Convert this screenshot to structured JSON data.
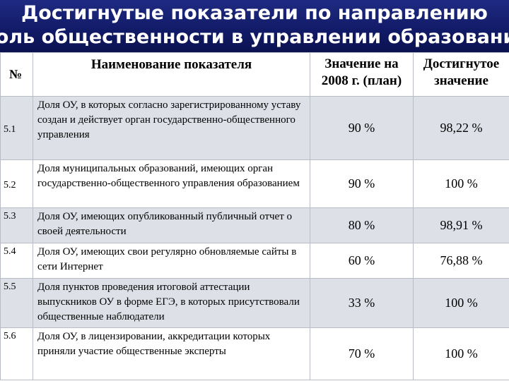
{
  "title": {
    "line1": "Достигнутые показатели по направлению",
    "line2": "Роль общественности в управлении образованием"
  },
  "table": {
    "headers": {
      "num": "№",
      "name": "Наименование показателя",
      "plan_line1": "Значение на",
      "plan_line2": "2008 г. (план)",
      "achieved_line1": "Достигнутое",
      "achieved_line2": "значение"
    },
    "rows": [
      {
        "num": "5.1",
        "name": "Доля ОУ, в которых согласно зарегистрированному уставу создан и действует орган государственно-общественного управления",
        "plan": "90 %",
        "achieved": "98,22 %"
      },
      {
        "num": "5.2",
        "name": "Доля муниципальных образований, имеющих орган государственно-общественного управления образованием",
        "plan": "90 %",
        "achieved": "100 %"
      },
      {
        "num": "5.3",
        "name": "Доля ОУ, имеющих опубликованный публичный отчет о своей деятельности",
        "plan": "80 %",
        "achieved": "98,91 %"
      },
      {
        "num": "5.4",
        "name": "Доля ОУ, имеющих свои регулярно обновляемые сайты в сети Интернет",
        "plan": "60 %",
        "achieved": "76,88 %"
      },
      {
        "num": "5.5",
        "name": "Доля пунктов проведения итоговой аттестации выпускников ОУ в форме ЕГЭ, в которых присутствовали общественные наблюдатели",
        "plan": "33 %",
        "achieved": "100 %"
      },
      {
        "num": "5.6",
        "name": "Доля ОУ, в лицензировании, аккредитации которых приняли участие общественные эксперты",
        "plan": "70 %",
        "achieved": "100 %"
      }
    ]
  }
}
